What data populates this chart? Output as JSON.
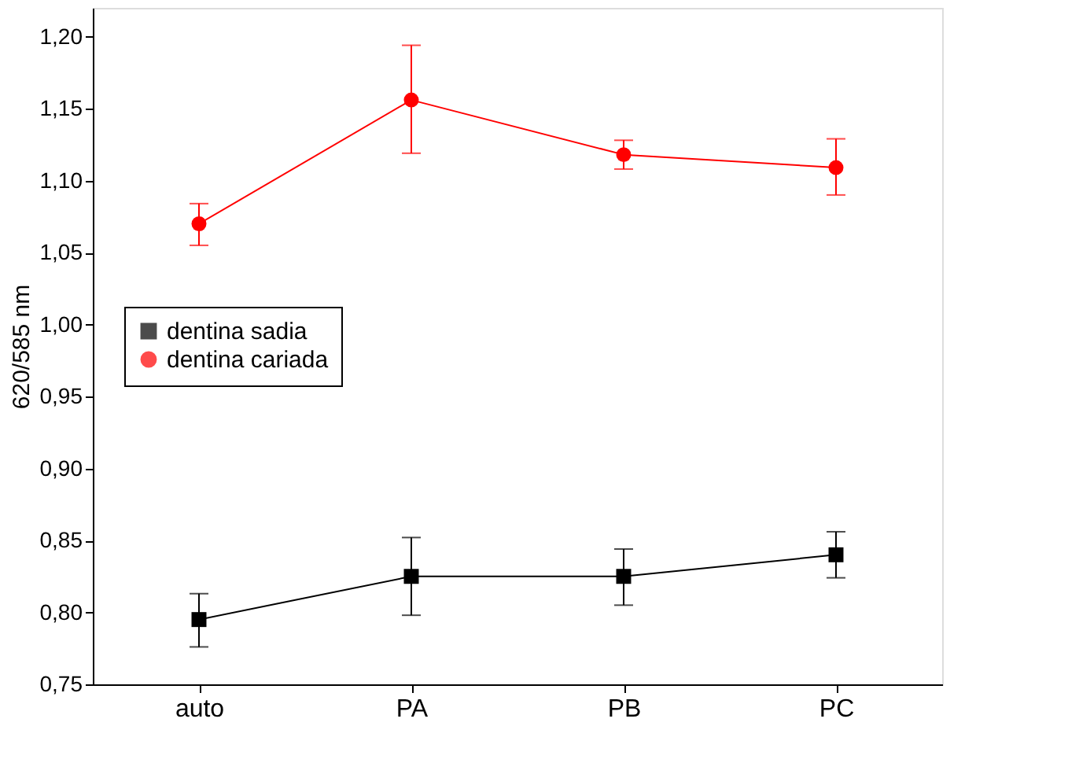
{
  "chart_data": {
    "type": "line",
    "ylabel": "620/585 nm",
    "categories": [
      "auto",
      "PA",
      "PB",
      "PC"
    ],
    "ylim": [
      0.75,
      1.22
    ],
    "yticks": [
      {
        "value": 0.75,
        "label": "0,75"
      },
      {
        "value": 0.8,
        "label": "0,80"
      },
      {
        "value": 0.85,
        "label": "0,85"
      },
      {
        "value": 0.9,
        "label": "0,90"
      },
      {
        "value": 0.95,
        "label": "0,95"
      },
      {
        "value": 1.0,
        "label": "1,00"
      },
      {
        "value": 1.05,
        "label": "1,05"
      },
      {
        "value": 1.1,
        "label": "1,10"
      },
      {
        "value": 1.15,
        "label": "1,15"
      },
      {
        "value": 1.2,
        "label": "1,20"
      }
    ],
    "series": [
      {
        "name": "dentina sadia",
        "color": "#000000",
        "marker": "square",
        "values": [
          0.795,
          0.825,
          0.825,
          0.84
        ],
        "errors": [
          [
            0.776,
            0.813
          ],
          [
            0.798,
            0.852
          ],
          [
            0.805,
            0.844
          ],
          [
            0.824,
            0.856
          ]
        ]
      },
      {
        "name": "dentina cariada",
        "color": "#ff0000",
        "marker": "circle",
        "values": [
          1.07,
          1.156,
          1.118,
          1.109
        ],
        "errors": [
          [
            1.055,
            1.084
          ],
          [
            1.119,
            1.194
          ],
          [
            1.108,
            1.128
          ],
          [
            1.09,
            1.129
          ]
        ]
      }
    ],
    "legend": "left",
    "grid": false,
    "line_style": "solid"
  }
}
